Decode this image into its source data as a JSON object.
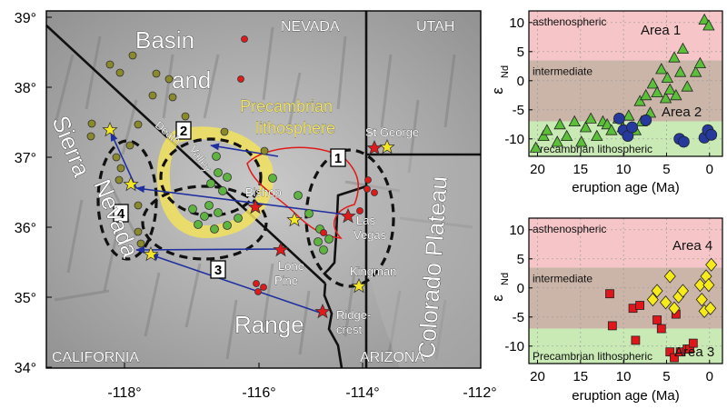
{
  "map": {
    "lat_ticks": [
      "39°",
      "38°",
      "37°",
      "36°",
      "35°",
      "34°"
    ],
    "lon_ticks": [
      "-118°",
      "-116°",
      "-114°",
      "-112°"
    ],
    "states": [
      "NEVADA",
      "UTAH",
      "CALIFORNIA",
      "ARIZONA"
    ],
    "regions": [
      "Basin",
      "and",
      "Range",
      "Sierra",
      "Nevada",
      "Colorado Plateau",
      "Precambrian",
      "lithosphere",
      "Death",
      "Valley"
    ],
    "cities": [
      "St George",
      "Bishop",
      "Las",
      "Vegas",
      "Lone",
      "Pine",
      "Kingman",
      "Ridge-",
      "crest"
    ],
    "area_labels": [
      "1",
      "2",
      "3",
      "4"
    ],
    "colors": {
      "dots_olive": "#8a8a2c",
      "dots_green": "#5fb341",
      "red": "#e01a1a",
      "star": "#f5e623",
      "arrow": "#1f2f9e",
      "craton": "#f2e25c"
    }
  },
  "chart_data": [
    {
      "type": "scatter",
      "title": "",
      "xlabel": "eruption age (Ma)",
      "ylabel_main": "ε",
      "ylabel_sub": "Nd",
      "xlim": [
        21,
        -1.5
      ],
      "ylim": [
        -13,
        12
      ],
      "xticks": [
        "20",
        "15",
        "10",
        "5",
        "0"
      ],
      "yticks": [
        "10",
        "5",
        "0",
        "-5",
        "-10"
      ],
      "bands": [
        {
          "name": "asthenospheric",
          "from": 3.5,
          "to": 12,
          "color": "#f5c5c8"
        },
        {
          "name": "intermediate",
          "from": -7,
          "to": 3.5,
          "color": "#cbb5a8"
        },
        {
          "name": "Precambrian lithospheric",
          "from": -13,
          "to": -7,
          "color": "#c9eab5"
        }
      ],
      "annotations": [
        "Area 1",
        "Area 2"
      ],
      "series": [
        {
          "name": "Area 1",
          "marker": "triangle",
          "color": "#5cbf3a",
          "x": [
            20.2,
            19.3,
            18.9,
            17.7,
            17.4,
            16.6,
            15.7,
            14.9,
            14.4,
            13.8,
            13.1,
            12.4,
            11.9,
            11.4,
            10.6,
            10.1,
            9.4,
            8.6,
            8.1,
            7.9,
            7.4,
            6.9,
            6.6,
            6.1,
            5.6,
            5.1,
            4.9,
            4.6,
            4.1,
            3.9,
            3.4,
            3.1,
            2.6,
            1.6,
            1.1,
            0.6,
            0.1
          ],
          "y": [
            -11.5,
            -9.5,
            -8.5,
            -10.5,
            -7.5,
            -9.5,
            -7.0,
            -10.5,
            -8.0,
            -6.5,
            -9.5,
            -7.0,
            -7.5,
            -8.5,
            -6.5,
            -8.0,
            -6.0,
            -8.5,
            -3.5,
            -7.0,
            -2.5,
            -5.5,
            -0.5,
            -2.0,
            2.0,
            -3.0,
            0.5,
            -1.5,
            4.0,
            -2.5,
            1.5,
            5.5,
            -1.0,
            1.5,
            3.0,
            10.5,
            9.5
          ]
        },
        {
          "name": "Area 2",
          "marker": "circle",
          "color": "#253a9c",
          "x": [
            10.5,
            10.0,
            9.5,
            9.0,
            7.4,
            3.5,
            3.0,
            0.6,
            0.2,
            -0.2
          ],
          "y": [
            -6.5,
            -8.5,
            -9.5,
            -8.0,
            -6.8,
            -10.0,
            -10.5,
            -9.8,
            -8.5,
            -9.3
          ]
        }
      ]
    },
    {
      "type": "scatter",
      "title": "",
      "xlabel": "eruption age (Ma)",
      "ylabel_main": "ε",
      "ylabel_sub": "Nd",
      "xlim": [
        21,
        -1.5
      ],
      "ylim": [
        -13,
        12
      ],
      "xticks": [
        "20",
        "15",
        "10",
        "5",
        "0"
      ],
      "yticks": [
        "10",
        "5",
        "0",
        "-5",
        "-10"
      ],
      "bands": [
        {
          "name": "asthenospheric",
          "from": 3.5,
          "to": 12,
          "color": "#f5c5c8"
        },
        {
          "name": "intermediate",
          "from": -7,
          "to": 3.5,
          "color": "#cbb5a8"
        },
        {
          "name": "Precambrian lithospheric",
          "from": -13,
          "to": -7,
          "color": "#c9eab5"
        }
      ],
      "annotations": [
        "Area 4",
        "Area 3"
      ],
      "series": [
        {
          "name": "Area 3",
          "marker": "square",
          "color": "#e0161b",
          "x": [
            11.6,
            11.3,
            8.9,
            8.6,
            8.1,
            6.1,
            5.6,
            4.6,
            4.1,
            3.9,
            3.4,
            2.6,
            2.3,
            1.9
          ],
          "y": [
            -1.0,
            -6.5,
            -3.5,
            -9.0,
            -3.0,
            -5.5,
            -7.0,
            -11.0,
            -12.0,
            -4.5,
            -11.0,
            -10.5,
            -10.5,
            -9.5
          ]
        },
        {
          "name": "Area 4",
          "marker": "diamond",
          "color": "#f7ea1b",
          "x": [
            6.6,
            6.1,
            5.1,
            4.6,
            4.1,
            3.6,
            3.1,
            1.1,
            0.9,
            0.6,
            0.4,
            0.1,
            -0.1,
            -0.2
          ],
          "y": [
            -2.0,
            -0.5,
            -2.5,
            2.0,
            -3.5,
            -1.5,
            -0.5,
            0.5,
            -2.0,
            -4.0,
            2.0,
            0.5,
            -3.5,
            4.0
          ]
        }
      ]
    }
  ]
}
